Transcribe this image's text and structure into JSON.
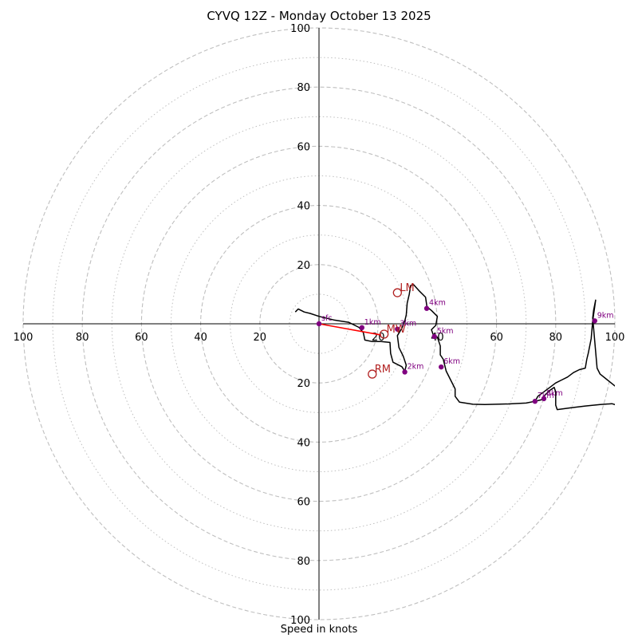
{
  "chart_data": {
    "type": "hodograph",
    "title": "CYVQ 12Z - Monday October 13 2025",
    "xlabel": "Speed in knots",
    "xlim": [
      -100,
      100
    ],
    "ylim": [
      -100,
      100
    ],
    "rings_major": [
      20,
      40,
      60,
      80,
      100
    ],
    "rings_minor": [
      10,
      30,
      50,
      70,
      90
    ],
    "x_tick_labels": [
      "100",
      "80",
      "60",
      "40",
      "20",
      "20",
      "40",
      "60",
      "80",
      "100"
    ],
    "x_tick_values": [
      -100,
      -80,
      -60,
      -40,
      -20,
      20,
      40,
      60,
      80,
      100
    ],
    "y_tick_labels": [
      "100",
      "80",
      "60",
      "40",
      "20",
      "20",
      "40",
      "60",
      "80",
      "100"
    ],
    "y_tick_values": [
      100,
      80,
      60,
      40,
      20,
      -20,
      -40,
      -60,
      -80,
      -100
    ],
    "hodograph_trace": [
      [
        -8,
        4
      ],
      [
        -7,
        5
      ],
      [
        -5,
        4
      ],
      [
        -3,
        3.5
      ],
      [
        0,
        2.5
      ],
      [
        5,
        1.3
      ],
      [
        10,
        0.5
      ],
      [
        13.5,
        -1.2
      ],
      [
        15,
        -3
      ],
      [
        15.5,
        -5.5
      ],
      [
        18,
        -6
      ],
      [
        21,
        -6
      ],
      [
        24,
        -6.3
      ],
      [
        24.2,
        -10
      ],
      [
        25,
        -13
      ],
      [
        28,
        -14.5
      ],
      [
        29,
        -16
      ],
      [
        29.5,
        -14
      ],
      [
        28.5,
        -11
      ],
      [
        27,
        -8
      ],
      [
        26.5,
        -4
      ],
      [
        28,
        -1.5
      ],
      [
        29,
        1
      ],
      [
        29.5,
        3
      ],
      [
        29.8,
        7
      ],
      [
        30.5,
        10
      ],
      [
        31,
        13
      ],
      [
        32,
        13.2
      ],
      [
        34,
        11
      ],
      [
        36,
        9
      ],
      [
        36.5,
        5.7
      ],
      [
        38,
        4.5
      ],
      [
        40,
        2.5
      ],
      [
        39.5,
        -0.5
      ],
      [
        38,
        -2
      ],
      [
        38.7,
        -4
      ],
      [
        40,
        -4.5
      ],
      [
        41,
        -7.5
      ],
      [
        41,
        -10.5
      ],
      [
        42,
        -12
      ],
      [
        43,
        -16
      ],
      [
        44.5,
        -19
      ],
      [
        46,
        -22
      ],
      [
        46,
        -24.5
      ],
      [
        47.5,
        -26.5
      ],
      [
        52,
        -27.2
      ],
      [
        56,
        -27.3
      ],
      [
        64,
        -27.1
      ],
      [
        70,
        -26.8
      ],
      [
        73,
        -26.2
      ],
      [
        75.5,
        -25.6
      ],
      [
        76,
        -24.5
      ],
      [
        78,
        -22.5
      ],
      [
        79.5,
        -21.5
      ],
      [
        80,
        -23
      ],
      [
        80,
        -27.5
      ],
      [
        80.5,
        -29
      ],
      [
        85,
        -28.4
      ],
      [
        90,
        -27.8
      ],
      [
        95,
        -27.3
      ],
      [
        99,
        -27
      ],
      [
        100,
        -27.3
      ],
      [
        101,
        -28
      ],
      [
        101,
        -21.5
      ],
      [
        100,
        -21
      ],
      [
        95,
        -17
      ],
      [
        94,
        -15
      ],
      [
        92.5,
        2
      ],
      [
        92.8,
        4.5
      ],
      [
        93.5,
        8
      ],
      [
        92.5,
        1
      ],
      [
        92,
        -5
      ],
      [
        91,
        -10
      ],
      [
        90.5,
        -12
      ],
      [
        90,
        -15
      ],
      [
        88,
        -15.5
      ],
      [
        86,
        -16.5
      ],
      [
        84,
        -18
      ],
      [
        82,
        -19
      ],
      [
        80,
        -20
      ],
      [
        78,
        -21.5
      ],
      [
        76,
        -23
      ],
      [
        74,
        -24.5
      ],
      [
        73,
        -26.2
      ]
    ],
    "height_markers": [
      {
        "label": "sfc",
        "u": 0,
        "v": 0
      },
      {
        "label": "1km",
        "u": 14.5,
        "v": -1.3
      },
      {
        "label": "2km",
        "u": 29,
        "v": -16.3
      },
      {
        "label": "3km",
        "u": 26.5,
        "v": -1.8
      },
      {
        "label": "4km",
        "u": 36.4,
        "v": 5.2
      },
      {
        "label": "5km",
        "u": 39,
        "v": -4.3
      },
      {
        "label": "6km",
        "u": 41.3,
        "v": -14.6
      },
      {
        "label": "7km",
        "u": 73,
        "v": -26.2
      },
      {
        "label": "8km",
        "u": 76,
        "v": -25.3
      },
      {
        "label": "9km",
        "u": 93.2,
        "v": 1
      }
    ],
    "shear_vector": {
      "from": [
        0,
        0
      ],
      "to": [
        21,
        -3.8
      ]
    },
    "storm_motion": [
      {
        "label": "LM",
        "u": 26.5,
        "v": 10.5
      },
      {
        "label": "MW",
        "u": 22,
        "v": -3.5
      },
      {
        "label": "RM",
        "u": 18,
        "v": -17
      }
    ]
  },
  "colors": {
    "trace": "#000000",
    "markers": "#800080",
    "shear": "#ff0000",
    "storm_motion": "#b22222",
    "rings": "#bfbfbf"
  }
}
